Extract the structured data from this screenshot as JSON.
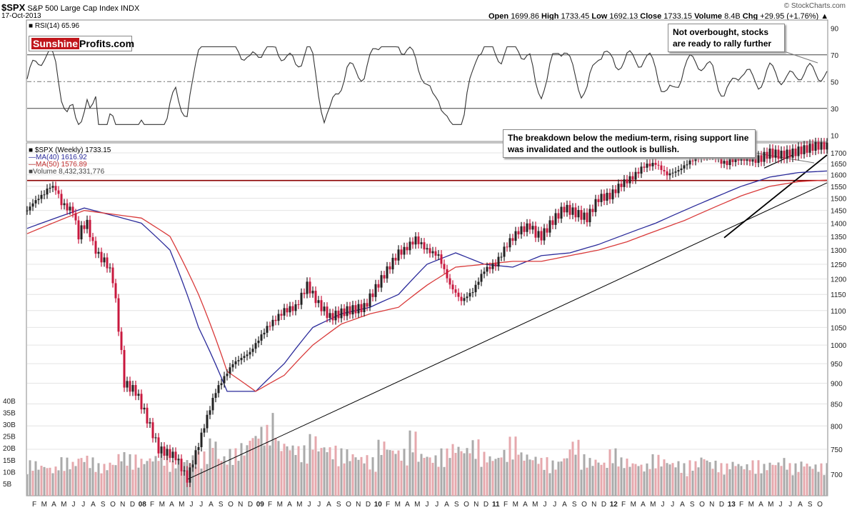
{
  "header": {
    "ticker": "$SPX",
    "index_name": "S&P 500 Large Cap Index",
    "exchange": "INDX",
    "date": "17-Oct-2013",
    "open_label": "Open",
    "open": "1699.86",
    "high_label": "High",
    "high": "1733.45",
    "low_label": "Low",
    "low": "1692.13",
    "close_label": "Close",
    "close": "1733.15",
    "volume_label": "Volume",
    "volume": "8.4B",
    "chg_label": "Chg",
    "chg": "+29.95 (+1.76%)",
    "source": "© StockCharts.com"
  },
  "logo": {
    "part1": "Sunshine",
    "part2": "Profits.com"
  },
  "rsi_panel": {
    "label": "RSI(14) 65.96",
    "levels": [
      90,
      70,
      50,
      30,
      10
    ],
    "callout": "Not overbought, stocks are ready to rally further"
  },
  "price_panel": {
    "legend": {
      "spx": "$SPX (Weekly) 1733.15",
      "ma40": "MA(40) 1616.92",
      "ma50": "MA(50) 1576.89",
      "volume": "Volume 8,432,331,776"
    },
    "callout": "The breakdown below the medium-term, rising support line was invalidated and the outlook is bullish.",
    "horizontal_level": 1575
  },
  "chart_data": {
    "type": "line",
    "y_ticks": [
      700,
      750,
      800,
      850,
      900,
      950,
      1000,
      1050,
      1100,
      1150,
      1200,
      1250,
      1300,
      1350,
      1400,
      1450,
      1500,
      1550,
      1600,
      1650,
      1700
    ],
    "ylim": [
      680,
      1740
    ],
    "y_scale": "log",
    "volume_ticks": [
      "5B",
      "10B",
      "15B",
      "20B",
      "25B",
      "30B",
      "35B",
      "40B"
    ],
    "x_labels": [
      "F",
      "M",
      "A",
      "M",
      "J",
      "J",
      "A",
      "S",
      "O",
      "N",
      "D",
      "08",
      "F",
      "M",
      "A",
      "M",
      "J",
      "J",
      "A",
      "S",
      "O",
      "N",
      "D",
      "09",
      "F",
      "M",
      "A",
      "M",
      "J",
      "J",
      "A",
      "S",
      "O",
      "N",
      "D",
      "10",
      "F",
      "M",
      "A",
      "M",
      "J",
      "J",
      "A",
      "S",
      "O",
      "N",
      "D",
      "11",
      "F",
      "M",
      "A",
      "M",
      "J",
      "J",
      "A",
      "S",
      "O",
      "N",
      "D",
      "12",
      "F",
      "M",
      "A",
      "M",
      "J",
      "J",
      "A",
      "S",
      "O",
      "N",
      "D",
      "13",
      "F",
      "M",
      "A",
      "M",
      "J",
      "J",
      "A",
      "S",
      "O"
    ],
    "series": [
      {
        "name": "$SPX (Weekly)",
        "color": "#000000",
        "x": [
          0,
          2,
          4,
          6,
          8,
          9,
          10,
          12,
          14,
          16,
          17,
          18,
          19,
          21,
          23,
          24,
          25,
          26,
          28,
          30,
          34,
          38,
          46,
          52,
          56,
          60,
          66,
          72,
          78,
          84,
          90,
          94,
          98,
          102,
          106,
          112,
          118,
          124,
          130,
          132,
          134,
          136,
          140,
          144,
          148,
          152,
          156,
          160,
          164,
          168,
          172,
          176,
          178,
          180,
          184,
          188,
          192,
          196,
          200,
          204,
          208,
          212,
          216,
          220,
          224,
          228,
          232,
          236,
          240,
          244,
          248,
          252,
          256,
          260,
          264,
          268,
          270,
          273,
          276,
          280
        ],
        "values": [
          1450,
          1480,
          1500,
          1520,
          1550,
          1545,
          1540,
          1480,
          1460,
          1450,
          1400,
          1350,
          1380,
          1400,
          1320,
          1300,
          1280,
          1270,
          1250,
          1200,
          900,
          880,
          750,
          735,
          690,
          760,
          880,
          950,
          980,
          1050,
          1100,
          1110,
          1180,
          1120,
          1080,
          1100,
          1110,
          1200,
          1290,
          1300,
          1320,
          1340,
          1300,
          1280,
          1180,
          1130,
          1160,
          1230,
          1250,
          1320,
          1370,
          1390,
          1360,
          1350,
          1410,
          1460,
          1440,
          1420,
          1500,
          1510,
          1560,
          1590,
          1640,
          1650,
          1600,
          1620,
          1660,
          1690,
          1700,
          1650,
          1680,
          1680,
          1670,
          1700,
          1690,
          1700,
          1710,
          1720,
          1733,
          1733
        ]
      },
      {
        "name": "MA(40)",
        "color": "#2a2a9a",
        "x": [
          0,
          20,
          40,
          50,
          60,
          70,
          80,
          90,
          100,
          110,
          120,
          130,
          140,
          150,
          160,
          170,
          180,
          190,
          200,
          210,
          220,
          230,
          240,
          250,
          260,
          270,
          280
        ],
        "values": [
          1380,
          1460,
          1400,
          1300,
          1050,
          880,
          880,
          950,
          1050,
          1090,
          1110,
          1150,
          1250,
          1290,
          1250,
          1240,
          1280,
          1290,
          1320,
          1360,
          1400,
          1450,
          1500,
          1550,
          1590,
          1610,
          1617
        ]
      },
      {
        "name": "MA(50)",
        "color": "#d93a3a",
        "x": [
          0,
          20,
          40,
          50,
          60,
          70,
          80,
          90,
          100,
          110,
          120,
          130,
          140,
          150,
          160,
          170,
          180,
          190,
          200,
          210,
          220,
          230,
          240,
          250,
          260,
          270,
          280
        ],
        "values": [
          1360,
          1450,
          1420,
          1350,
          1150,
          930,
          880,
          920,
          1000,
          1060,
          1090,
          1110,
          1180,
          1240,
          1250,
          1260,
          1260,
          1280,
          1300,
          1330,
          1370,
          1410,
          1460,
          1510,
          1550,
          1570,
          1577
        ]
      }
    ],
    "volume_values_B": [
      12,
      11,
      10,
      13,
      12,
      14,
      13,
      11,
      12,
      15,
      14,
      13,
      14,
      16,
      12,
      13,
      14,
      15,
      20,
      14,
      16,
      18,
      22,
      24,
      28,
      19,
      18,
      17,
      21,
      18,
      17,
      16,
      15,
      14,
      13,
      19,
      17,
      16,
      22,
      15,
      14,
      16,
      18,
      17,
      19,
      15,
      14,
      16,
      20,
      15,
      14,
      13,
      12,
      14,
      19,
      14,
      13,
      12,
      16,
      13,
      12,
      11,
      14,
      13,
      12,
      11,
      12,
      14,
      12,
      11,
      12,
      11,
      12,
      11,
      12,
      13,
      11,
      12,
      11,
      11
    ]
  },
  "colors": {
    "up_bar": "#222222",
    "down_bar": "#c8183e",
    "volume_up": "#aaaaaa",
    "volume_down": "#e6a8ad",
    "level_line": "#8b0000",
    "rsi_fill_over": "#4a7a4a",
    "rsi_fill_under": "#a14848"
  }
}
